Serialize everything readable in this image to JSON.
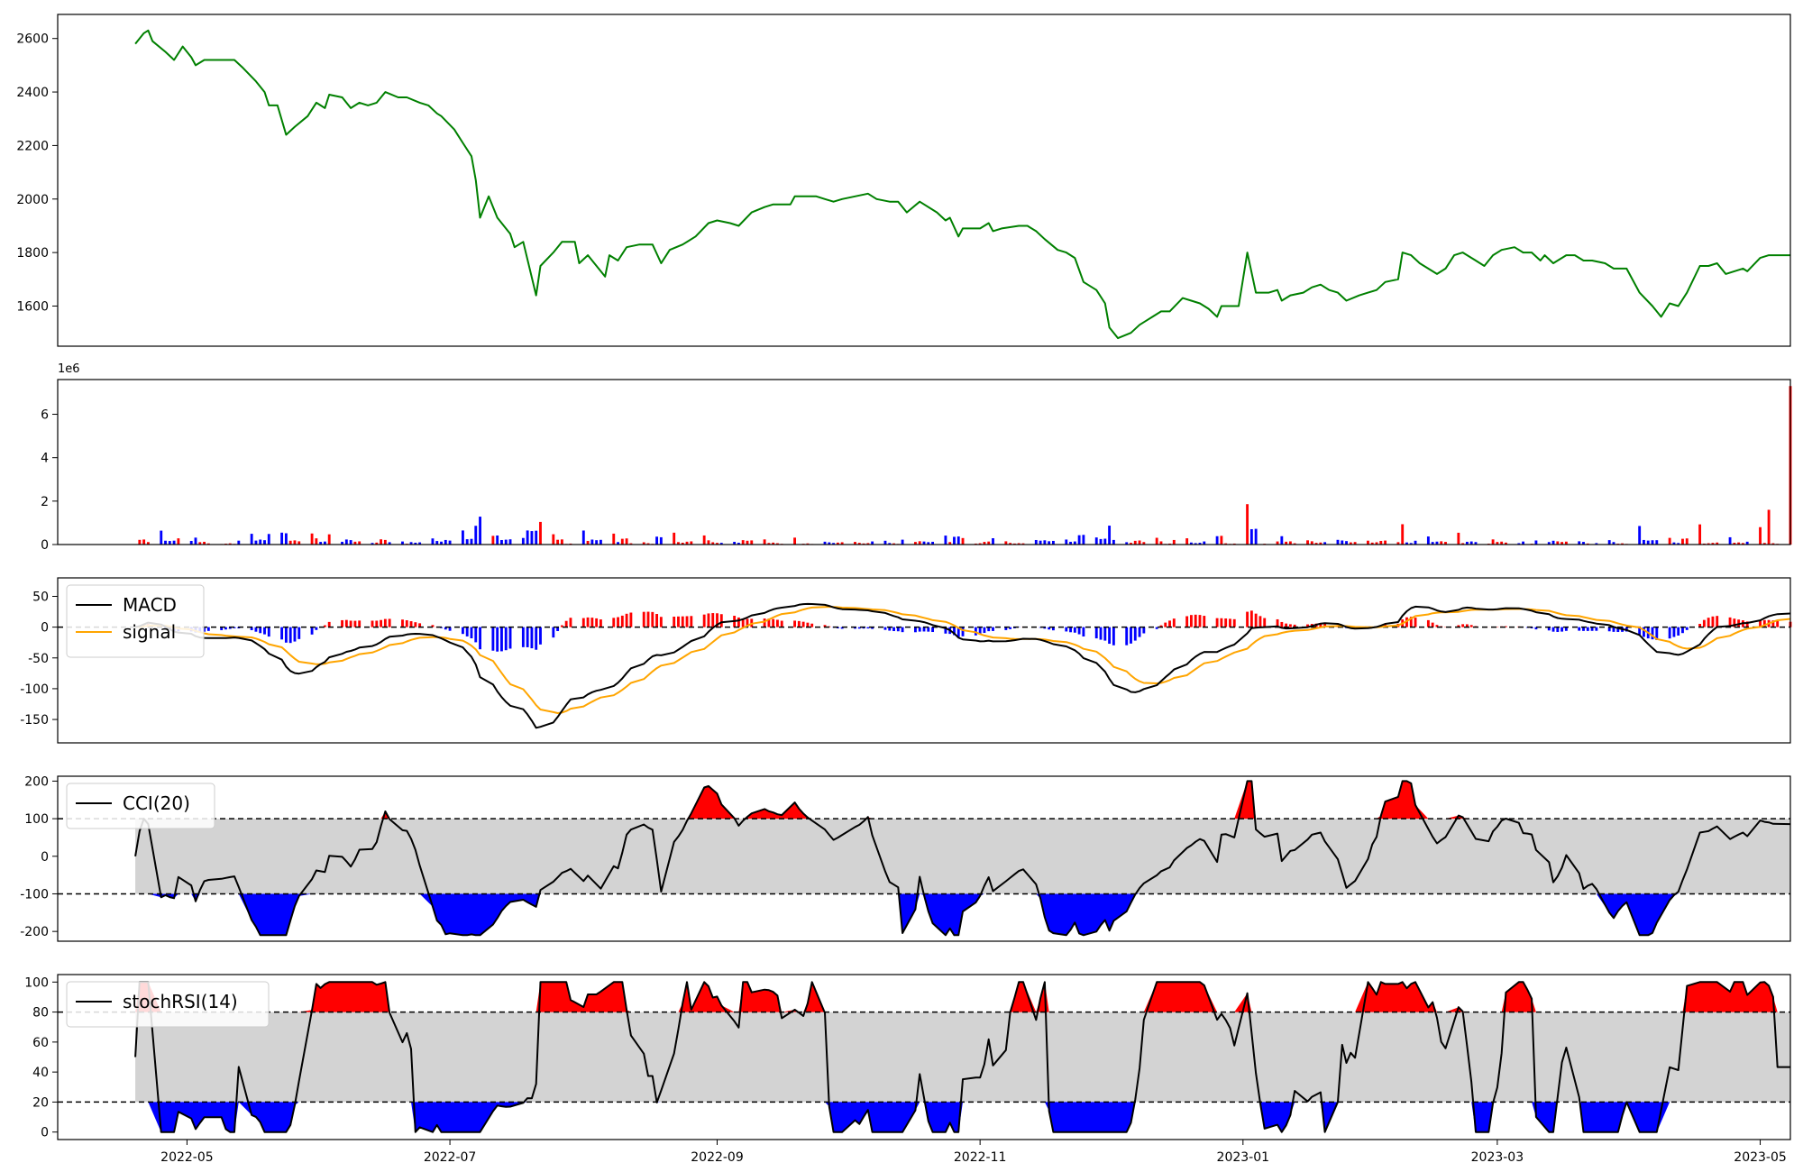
{
  "colors": {
    "price": "#008000",
    "up": "#ff0000",
    "down": "#0000ff",
    "macd": "#000000",
    "signal": "#ffa500",
    "band": "#d3d3d3",
    "line": "#000000"
  },
  "x_axis": {
    "range": [
      "2022-04-01",
      "2023-05-08"
    ],
    "ticks": [
      "2022-05-01",
      "2022-07-01",
      "2022-09-01",
      "2022-11-01",
      "2023-01-01",
      "2023-03-01",
      "2023-05-01"
    ],
    "tick_labels": [
      "2022-05",
      "2022-07",
      "2022-09",
      "2022-11",
      "2023-01",
      "2023-03",
      "2023-05"
    ]
  },
  "chart_data": [
    {
      "type": "line",
      "ylim": [
        1450,
        2690
      ],
      "yticks": [
        1600,
        1800,
        2000,
        2200,
        2400,
        2600
      ],
      "series": [
        {
          "points": [
            [
              "2022-04-19",
              2580
            ],
            [
              "2022-04-21",
              2620
            ],
            [
              "2022-04-22",
              2630
            ],
            [
              "2022-04-23",
              2590
            ],
            [
              "2022-04-26",
              2550
            ],
            [
              "2022-04-28",
              2520
            ],
            [
              "2022-04-30",
              2570
            ],
            [
              "2022-05-02",
              2530
            ],
            [
              "2022-05-03",
              2500
            ],
            [
              "2022-05-05",
              2520
            ],
            [
              "2022-05-09",
              2520
            ],
            [
              "2022-05-12",
              2520
            ],
            [
              "2022-05-14",
              2490
            ],
            [
              "2022-05-17",
              2440
            ],
            [
              "2022-05-19",
              2400
            ],
            [
              "2022-05-20",
              2350
            ],
            [
              "2022-05-22",
              2350
            ],
            [
              "2022-05-24",
              2240
            ],
            [
              "2022-05-26",
              2270
            ],
            [
              "2022-05-29",
              2310
            ],
            [
              "2022-05-31",
              2360
            ],
            [
              "2022-06-02",
              2340
            ],
            [
              "2022-06-03",
              2390
            ],
            [
              "2022-06-06",
              2380
            ],
            [
              "2022-06-08",
              2340
            ],
            [
              "2022-06-10",
              2360
            ],
            [
              "2022-06-12",
              2350
            ],
            [
              "2022-06-14",
              2360
            ],
            [
              "2022-06-16",
              2400
            ],
            [
              "2022-06-19",
              2380
            ],
            [
              "2022-06-21",
              2380
            ],
            [
              "2022-06-24",
              2360
            ],
            [
              "2022-06-26",
              2350
            ],
            [
              "2022-06-28",
              2320
            ],
            [
              "2022-06-29",
              2310
            ],
            [
              "2022-07-02",
              2260
            ],
            [
              "2022-07-04",
              2210
            ],
            [
              "2022-07-06",
              2160
            ],
            [
              "2022-07-07",
              2070
            ],
            [
              "2022-07-08",
              1930
            ],
            [
              "2022-07-10",
              2010
            ],
            [
              "2022-07-12",
              1930
            ],
            [
              "2022-07-15",
              1870
            ],
            [
              "2022-07-16",
              1820
            ],
            [
              "2022-07-18",
              1840
            ],
            [
              "2022-07-21",
              1640
            ],
            [
              "2022-07-22",
              1750
            ],
            [
              "2022-07-25",
              1800
            ],
            [
              "2022-07-27",
              1840
            ],
            [
              "2022-07-30",
              1840
            ],
            [
              "2022-07-31",
              1760
            ],
            [
              "2022-08-02",
              1790
            ],
            [
              "2022-08-06",
              1710
            ],
            [
              "2022-08-07",
              1790
            ],
            [
              "2022-08-09",
              1770
            ],
            [
              "2022-08-11",
              1820
            ],
            [
              "2022-08-14",
              1830
            ],
            [
              "2022-08-17",
              1830
            ],
            [
              "2022-08-19",
              1760
            ],
            [
              "2022-08-21",
              1810
            ],
            [
              "2022-08-24",
              1830
            ],
            [
              "2022-08-27",
              1860
            ],
            [
              "2022-08-30",
              1910
            ],
            [
              "2022-09-01",
              1920
            ],
            [
              "2022-09-04",
              1910
            ],
            [
              "2022-09-06",
              1900
            ],
            [
              "2022-09-09",
              1950
            ],
            [
              "2022-09-12",
              1970
            ],
            [
              "2022-09-14",
              1980
            ],
            [
              "2022-09-18",
              1980
            ],
            [
              "2022-09-19",
              2010
            ],
            [
              "2022-09-24",
              2010
            ],
            [
              "2022-09-26",
              2000
            ],
            [
              "2022-09-28",
              1990
            ],
            [
              "2022-09-30",
              2000
            ],
            [
              "2022-10-03",
              2010
            ],
            [
              "2022-10-06",
              2020
            ],
            [
              "2022-10-08",
              2000
            ],
            [
              "2022-10-11",
              1990
            ],
            [
              "2022-10-13",
              1990
            ],
            [
              "2022-10-15",
              1950
            ],
            [
              "2022-10-18",
              1990
            ],
            [
              "2022-10-22",
              1950
            ],
            [
              "2022-10-24",
              1920
            ],
            [
              "2022-10-25",
              1930
            ],
            [
              "2022-10-27",
              1860
            ],
            [
              "2022-10-28",
              1890
            ],
            [
              "2022-10-31",
              1890
            ],
            [
              "2022-11-01",
              1890
            ],
            [
              "2022-11-03",
              1910
            ],
            [
              "2022-11-04",
              1880
            ],
            [
              "2022-11-06",
              1890
            ],
            [
              "2022-11-10",
              1900
            ],
            [
              "2022-11-12",
              1900
            ],
            [
              "2022-11-14",
              1880
            ],
            [
              "2022-11-16",
              1850
            ],
            [
              "2022-11-19",
              1810
            ],
            [
              "2022-11-21",
              1800
            ],
            [
              "2022-11-23",
              1780
            ],
            [
              "2022-11-25",
              1690
            ],
            [
              "2022-11-28",
              1660
            ],
            [
              "2022-11-30",
              1610
            ],
            [
              "2022-12-01",
              1520
            ],
            [
              "2022-12-03",
              1480
            ],
            [
              "2022-12-06",
              1500
            ],
            [
              "2022-12-08",
              1530
            ],
            [
              "2022-12-11",
              1560
            ],
            [
              "2022-12-13",
              1580
            ],
            [
              "2022-12-15",
              1580
            ],
            [
              "2022-12-18",
              1630
            ],
            [
              "2022-12-20",
              1620
            ],
            [
              "2022-12-22",
              1610
            ],
            [
              "2022-12-24",
              1590
            ],
            [
              "2022-12-26",
              1560
            ],
            [
              "2022-12-27",
              1600
            ],
            [
              "2022-12-31",
              1600
            ],
            [
              "2023-01-02",
              1800
            ],
            [
              "2023-01-04",
              1650
            ],
            [
              "2023-01-07",
              1650
            ],
            [
              "2023-01-09",
              1660
            ],
            [
              "2023-01-10",
              1620
            ],
            [
              "2023-01-12",
              1640
            ],
            [
              "2023-01-15",
              1650
            ],
            [
              "2023-01-17",
              1670
            ],
            [
              "2023-01-19",
              1680
            ],
            [
              "2023-01-21",
              1660
            ],
            [
              "2023-01-23",
              1650
            ],
            [
              "2023-01-25",
              1620
            ],
            [
              "2023-01-28",
              1640
            ],
            [
              "2023-01-30",
              1650
            ],
            [
              "2023-02-01",
              1660
            ],
            [
              "2023-02-03",
              1690
            ],
            [
              "2023-02-06",
              1700
            ],
            [
              "2023-02-07",
              1800
            ],
            [
              "2023-02-09",
              1790
            ],
            [
              "2023-02-11",
              1760
            ],
            [
              "2023-02-15",
              1720
            ],
            [
              "2023-02-17",
              1740
            ],
            [
              "2023-02-19",
              1790
            ],
            [
              "2023-02-21",
              1800
            ],
            [
              "2023-02-24",
              1770
            ],
            [
              "2023-02-26",
              1750
            ],
            [
              "2023-02-28",
              1790
            ],
            [
              "2023-03-02",
              1810
            ],
            [
              "2023-03-05",
              1820
            ],
            [
              "2023-03-07",
              1800
            ],
            [
              "2023-03-09",
              1800
            ],
            [
              "2023-03-11",
              1770
            ],
            [
              "2023-03-12",
              1790
            ],
            [
              "2023-03-14",
              1760
            ],
            [
              "2023-03-17",
              1790
            ],
            [
              "2023-03-19",
              1790
            ],
            [
              "2023-03-21",
              1770
            ],
            [
              "2023-03-23",
              1770
            ],
            [
              "2023-03-26",
              1760
            ],
            [
              "2023-03-28",
              1740
            ],
            [
              "2023-03-31",
              1740
            ],
            [
              "2023-04-03",
              1650
            ],
            [
              "2023-04-06",
              1600
            ],
            [
              "2023-04-08",
              1560
            ],
            [
              "2023-04-10",
              1610
            ],
            [
              "2023-04-12",
              1600
            ],
            [
              "2023-04-14",
              1650
            ],
            [
              "2023-04-17",
              1750
            ],
            [
              "2023-04-19",
              1750
            ],
            [
              "2023-04-21",
              1760
            ],
            [
              "2023-04-23",
              1720
            ],
            [
              "2023-04-25",
              1730
            ],
            [
              "2023-04-27",
              1740
            ],
            [
              "2023-04-28",
              1730
            ],
            [
              "2023-05-01",
              1780
            ],
            [
              "2023-05-03",
              1790
            ],
            [
              "2023-05-06",
              1790
            ],
            [
              "2023-05-08",
              1790
            ]
          ]
        }
      ]
    },
    {
      "type": "bar",
      "ylim": [
        0,
        7600000
      ],
      "yticks": [
        0,
        2000000,
        4000000,
        6000000
      ],
      "ytick_labels": [
        "0",
        "2",
        "4",
        "6"
      ],
      "exponent_label": "1e6",
      "bar_width_days": 0.6
    },
    {
      "type": "line",
      "ylim": [
        -188,
        80
      ],
      "yticks": [
        50,
        0,
        -50,
        -100,
        -150
      ],
      "reference_lines": [
        0
      ],
      "legend": [
        "MACD",
        "signal"
      ]
    },
    {
      "type": "area",
      "ylim": [
        -226,
        213
      ],
      "yticks": [
        200,
        100,
        0,
        -100,
        -200
      ],
      "reference_lines": [
        100,
        -100
      ],
      "band": [
        -100,
        100
      ],
      "legend": [
        "CCI(20)"
      ]
    },
    {
      "type": "area",
      "ylim": [
        -5,
        105
      ],
      "yticks": [
        100,
        80,
        60,
        40,
        20,
        0
      ],
      "reference_lines": [
        80,
        20
      ],
      "band": [
        20,
        80
      ],
      "legend": [
        "stochRSI(14)"
      ]
    }
  ]
}
